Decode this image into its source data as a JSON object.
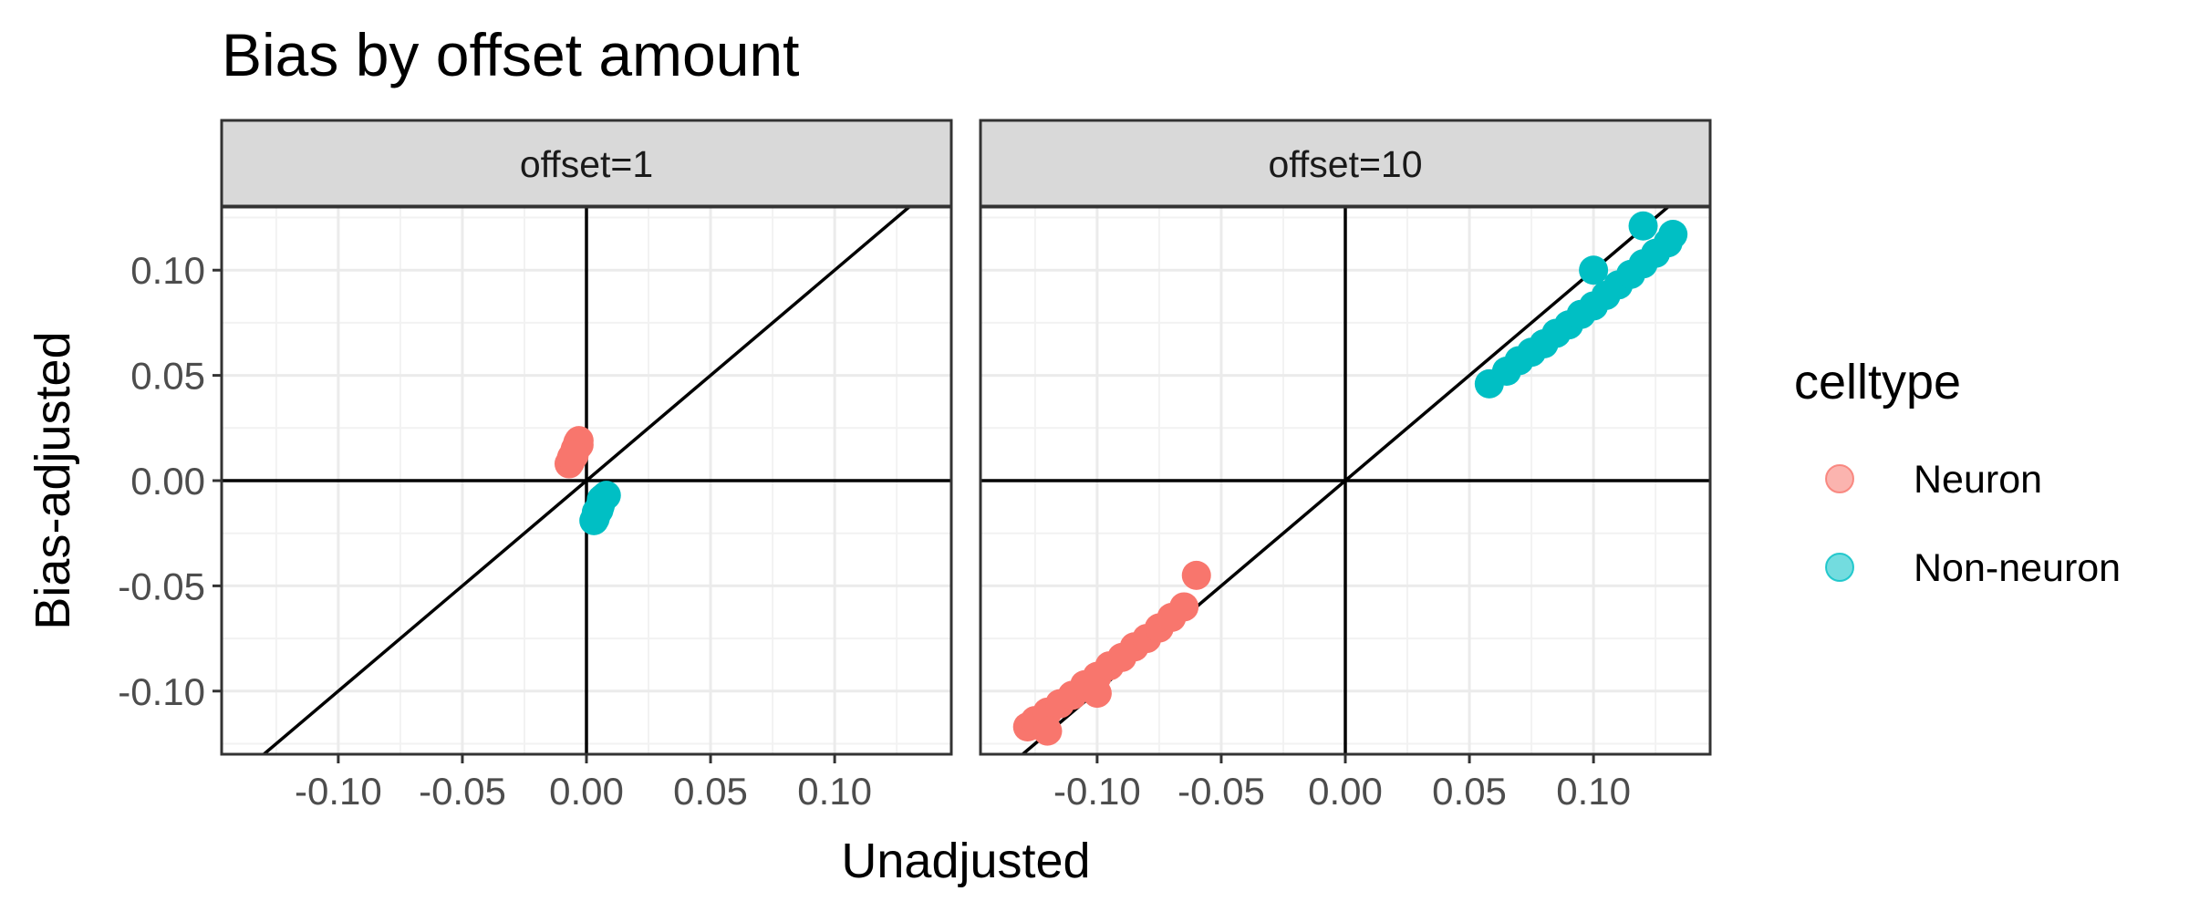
{
  "chart_data": {
    "type": "scatter",
    "title": "Bias by offset amount",
    "xlabel": "Unadjusted",
    "ylabel": "Bias-adjusted",
    "xlim": [
      -0.147,
      0.147
    ],
    "ylim": [
      -0.13,
      0.13
    ],
    "x_ticks": [
      -0.1,
      -0.05,
      0.0,
      0.05,
      0.1
    ],
    "x_tick_labels": [
      "-0.10",
      "-0.05",
      "0.00",
      "0.05",
      "0.10"
    ],
    "y_ticks": [
      -0.1,
      -0.05,
      0.0,
      0.05,
      0.1
    ],
    "y_tick_labels": [
      "-0.10",
      "-0.05",
      "0.00",
      "0.05",
      "0.10"
    ],
    "grid": true,
    "reference_lines": [
      "y = x",
      "x = 0",
      "y = 0"
    ],
    "legend": {
      "title": "celltype",
      "position": "right",
      "entries": [
        {
          "label": "Neuron",
          "color": "#F8766D"
        },
        {
          "label": "Non-neuron",
          "color": "#00BFC4"
        }
      ]
    },
    "facets": [
      {
        "label": "offset=1",
        "series": [
          {
            "name": "Neuron",
            "color": "#F8766D",
            "x": [
              -0.007,
              -0.0065,
              -0.006,
              -0.005,
              -0.0045,
              -0.004,
              -0.0035,
              -0.003,
              -0.003,
              -0.005
            ],
            "y": [
              0.008,
              0.009,
              0.011,
              0.013,
              0.015,
              0.016,
              0.018,
              0.019,
              0.017,
              0.012
            ]
          },
          {
            "name": "Non-neuron",
            "color": "#00BFC4",
            "x": [
              0.003,
              0.0035,
              0.004,
              0.005,
              0.0055,
              0.006,
              0.007,
              0.008,
              0.006,
              0.004
            ],
            "y": [
              -0.019,
              -0.018,
              -0.016,
              -0.014,
              -0.012,
              -0.01,
              -0.008,
              -0.007,
              -0.009,
              -0.015
            ]
          }
        ]
      },
      {
        "label": "offset=10",
        "series": [
          {
            "name": "Neuron",
            "color": "#F8766D",
            "x": [
              -0.128,
              -0.125,
              -0.12,
              -0.115,
              -0.11,
              -0.105,
              -0.1,
              -0.095,
              -0.09,
              -0.085,
              -0.08,
              -0.075,
              -0.07,
              -0.065,
              -0.06,
              -0.1,
              -0.12
            ],
            "y": [
              -0.117,
              -0.114,
              -0.11,
              -0.106,
              -0.102,
              -0.097,
              -0.093,
              -0.088,
              -0.084,
              -0.079,
              -0.075,
              -0.07,
              -0.065,
              -0.06,
              -0.045,
              -0.101,
              -0.119
            ]
          },
          {
            "name": "Non-neuron",
            "color": "#00BFC4",
            "x": [
              0.058,
              0.065,
              0.07,
              0.075,
              0.08,
              0.085,
              0.09,
              0.095,
              0.1,
              0.105,
              0.11,
              0.115,
              0.12,
              0.125,
              0.13,
              0.132,
              0.1,
              0.12
            ],
            "y": [
              0.046,
              0.052,
              0.057,
              0.061,
              0.065,
              0.07,
              0.074,
              0.079,
              0.083,
              0.088,
              0.093,
              0.098,
              0.103,
              0.108,
              0.113,
              0.117,
              0.1,
              0.121
            ]
          }
        ]
      }
    ]
  }
}
